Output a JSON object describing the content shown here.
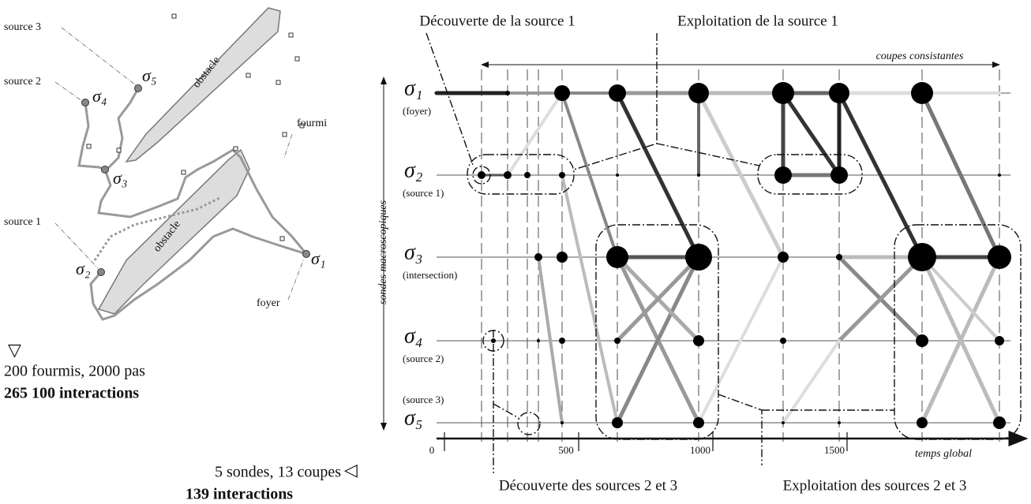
{
  "left_panel": {
    "labels": {
      "source_3": "source 3",
      "source_2": "source 2",
      "source_1": "source 1",
      "fourmi": "fourmi",
      "foyer": "foyer",
      "obstacle_top": "obstacle",
      "obstacle_bottom": "obstacle"
    },
    "sigmas": {
      "s1": "σ₁",
      "s2": "σ₂",
      "s3": "σ₃",
      "s4": "σ₄",
      "s5": "σ₅"
    }
  },
  "summary": {
    "micro_symbol": "▽",
    "micro_line1": "200 fourmis, 2000 pas",
    "micro_line2": "265 100 interactions",
    "macro_line1": "5 sondes, 13 coupes",
    "macro_symbol": "◁",
    "macro_line2": "139 interactions"
  },
  "right_panel": {
    "annotations": {
      "discovery_1": "Découverte de la source 1",
      "exploitation_1": "Exploitation de la source 1",
      "consistent_cuts": "coupes consistantes",
      "discovery_23": "Découverte des sources 2 et 3",
      "exploitation_23": "Exploitation des sources 2 et 3"
    },
    "rows": [
      {
        "sigma": "σ₁",
        "label": "(foyer)"
      },
      {
        "sigma": "σ₂",
        "label": "(source 1)"
      },
      {
        "sigma": "σ₃",
        "label": "(intersection)"
      },
      {
        "sigma": "σ₄",
        "label": "(source 2)"
      },
      {
        "sigma": "σ₅",
        "label": "(source 3)"
      }
    ],
    "y_axis_label": "sondes macroscopiques",
    "x_axis_label": "temps global",
    "xticks": [
      0,
      500,
      1000,
      1500
    ]
  }
}
